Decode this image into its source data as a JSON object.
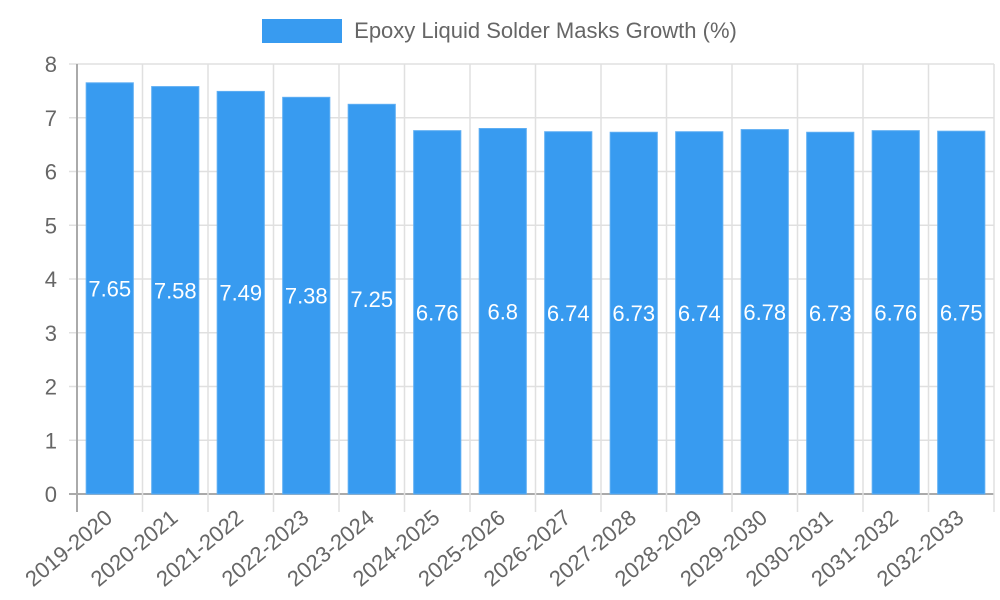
{
  "legend": {
    "label": "Epoxy Liquid Solder Masks Growth (%)",
    "color": "#389bf0"
  },
  "chart_data": {
    "type": "bar",
    "title": "",
    "categories": [
      "2019-2020",
      "2020-2021",
      "2021-2022",
      "2022-2023",
      "2023-2024",
      "2024-2025",
      "2025-2026",
      "2026-2027",
      "2027-2028",
      "2028-2029",
      "2029-2030",
      "2030-2031",
      "2031-2032",
      "2032-2033"
    ],
    "series": [
      {
        "name": "Epoxy Liquid Solder Masks Growth (%)",
        "values": [
          7.65,
          7.58,
          7.49,
          7.38,
          7.25,
          6.76,
          6.8,
          6.74,
          6.73,
          6.74,
          6.78,
          6.73,
          6.76,
          6.75
        ],
        "color": "#389bf0"
      }
    ],
    "xlabel": "",
    "ylabel": "",
    "ylim": [
      0,
      8
    ],
    "yticks": [
      0,
      1,
      2,
      3,
      4,
      5,
      6,
      7,
      8
    ],
    "grid": true,
    "legend_position": "top"
  }
}
